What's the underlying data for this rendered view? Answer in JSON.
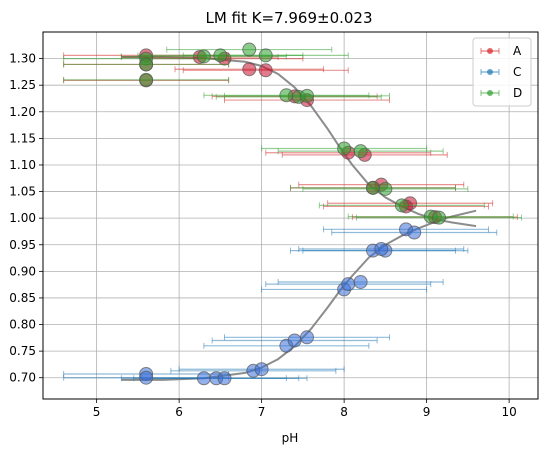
{
  "chart_data": {
    "type": "scatter",
    "title": "LM fit K=7.969±0.023",
    "xlabel": "pH",
    "ylabel": "",
    "xlim": [
      4.35,
      10.35
    ],
    "ylim": [
      0.66,
      1.35
    ],
    "xticks": [
      5,
      6,
      7,
      8,
      9,
      10
    ],
    "yticks": [
      0.7,
      0.75,
      0.8,
      0.85,
      0.9,
      0.95,
      1.0,
      1.05,
      1.1,
      1.15,
      1.2,
      1.25,
      1.3
    ],
    "xtick_labels": [
      "5",
      "6",
      "7",
      "8",
      "9",
      "10"
    ],
    "ytick_labels": [
      "0.70",
      "0.75",
      "0.80",
      "0.85",
      "0.90",
      "0.95",
      "1.00",
      "1.05",
      "1.10",
      "1.15",
      "1.20",
      "1.25",
      "1.30"
    ],
    "grid": true,
    "legend": "top-right",
    "series": [
      {
        "name": "A",
        "color": "#d62728",
        "fill": "#c8102e",
        "points": [
          {
            "x": 5.6,
            "y": 1.306,
            "xerr": 1.0
          },
          {
            "x": 5.6,
            "y": 1.289,
            "xerr": 1.0
          },
          {
            "x": 5.6,
            "y": 1.259,
            "xerr": 1.0
          },
          {
            "x": 6.25,
            "y": 1.303,
            "xerr": 0.95
          },
          {
            "x": 6.55,
            "y": 1.3,
            "xerr": 0.95
          },
          {
            "x": 6.85,
            "y": 1.28,
            "xerr": 0.9
          },
          {
            "x": 7.05,
            "y": 1.278,
            "xerr": 1.0
          },
          {
            "x": 7.4,
            "y": 1.229,
            "xerr": 1.0
          },
          {
            "x": 7.55,
            "y": 1.222,
            "xerr": 1.0
          },
          {
            "x": 8.05,
            "y": 1.123,
            "xerr": 1.0
          },
          {
            "x": 8.25,
            "y": 1.119,
            "xerr": 1.0
          },
          {
            "x": 8.45,
            "y": 1.063,
            "xerr": 1.0
          },
          {
            "x": 8.35,
            "y": 1.057,
            "xerr": 1.0
          },
          {
            "x": 8.8,
            "y": 1.028,
            "xerr": 1.0
          },
          {
            "x": 8.75,
            "y": 1.022,
            "xerr": 1.0
          },
          {
            "x": 9.1,
            "y": 1.002,
            "xerr": 1.0
          }
        ]
      },
      {
        "name": "C",
        "color": "#1f77b4",
        "fill": "#3a6fd8",
        "points": [
          {
            "x": 5.6,
            "y": 0.707,
            "xerr": 1.0
          },
          {
            "x": 5.6,
            "y": 0.7,
            "xerr": 1.0
          },
          {
            "x": 6.3,
            "y": 0.699,
            "xerr": 1.0
          },
          {
            "x": 6.45,
            "y": 0.699,
            "xerr": 1.0
          },
          {
            "x": 6.55,
            "y": 0.699,
            "xerr": 1.0
          },
          {
            "x": 6.9,
            "y": 0.713,
            "xerr": 1.0
          },
          {
            "x": 7.0,
            "y": 0.716,
            "xerr": 1.0
          },
          {
            "x": 7.3,
            "y": 0.76,
            "xerr": 1.0
          },
          {
            "x": 7.4,
            "y": 0.77,
            "xerr": 1.0
          },
          {
            "x": 7.55,
            "y": 0.776,
            "xerr": 1.0
          },
          {
            "x": 8.0,
            "y": 0.866,
            "xerr": 1.0
          },
          {
            "x": 8.05,
            "y": 0.876,
            "xerr": 1.0
          },
          {
            "x": 8.2,
            "y": 0.88,
            "xerr": 1.0
          },
          {
            "x": 8.35,
            "y": 0.939,
            "xerr": 1.0
          },
          {
            "x": 8.5,
            "y": 0.939,
            "xerr": 1.0
          },
          {
            "x": 8.45,
            "y": 0.942,
            "xerr": 1.0
          },
          {
            "x": 8.75,
            "y": 0.979,
            "xerr": 1.0
          },
          {
            "x": 8.85,
            "y": 0.973,
            "xerr": 1.0
          }
        ]
      },
      {
        "name": "D",
        "color": "#2ca02c",
        "fill": "#2ca02c",
        "points": [
          {
            "x": 5.6,
            "y": 1.3,
            "xerr": 1.0
          },
          {
            "x": 5.6,
            "y": 1.289,
            "xerr": 1.0
          },
          {
            "x": 5.6,
            "y": 1.26,
            "xerr": 1.0
          },
          {
            "x": 6.3,
            "y": 1.304,
            "xerr": 1.0
          },
          {
            "x": 6.5,
            "y": 1.306,
            "xerr": 1.0
          },
          {
            "x": 6.85,
            "y": 1.317,
            "xerr": 1.0
          },
          {
            "x": 7.05,
            "y": 1.306,
            "xerr": 1.0
          },
          {
            "x": 7.3,
            "y": 1.231,
            "xerr": 1.0
          },
          {
            "x": 7.45,
            "y": 1.228,
            "xerr": 1.0
          },
          {
            "x": 7.55,
            "y": 1.23,
            "xerr": 1.0
          },
          {
            "x": 8.0,
            "y": 1.131,
            "xerr": 1.0
          },
          {
            "x": 8.2,
            "y": 1.126,
            "xerr": 1.0
          },
          {
            "x": 8.35,
            "y": 1.057,
            "xerr": 1.0
          },
          {
            "x": 8.5,
            "y": 1.055,
            "xerr": 1.0
          },
          {
            "x": 8.7,
            "y": 1.024,
            "xerr": 1.0
          },
          {
            "x": 9.05,
            "y": 1.003,
            "xerr": 1.0
          },
          {
            "x": 9.15,
            "y": 1.001,
            "xerr": 1.0
          }
        ]
      }
    ],
    "fit_curves": [
      {
        "color": "#808080",
        "x": [
          5.3,
          5.8,
          6.3,
          6.8,
          7.0,
          7.2,
          7.4,
          7.6,
          7.8,
          7.969,
          8.1,
          8.3,
          8.5,
          8.7,
          8.9,
          9.1,
          9.3,
          9.6
        ],
        "y": [
          1.303,
          1.303,
          1.301,
          1.294,
          1.286,
          1.271,
          1.246,
          1.211,
          1.168,
          1.128,
          1.1,
          1.063,
          1.039,
          1.022,
          1.008,
          0.998,
          0.992,
          0.985
        ]
      },
      {
        "color": "#808080",
        "x": [
          5.3,
          5.8,
          6.3,
          6.8,
          7.0,
          7.2,
          7.4,
          7.6,
          7.8,
          7.969,
          8.1,
          8.3,
          8.5,
          8.7,
          8.9,
          9.1,
          9.3,
          9.6
        ],
        "y": [
          0.696,
          0.696,
          0.699,
          0.709,
          0.719,
          0.735,
          0.759,
          0.792,
          0.832,
          0.868,
          0.892,
          0.926,
          0.95,
          0.967,
          0.981,
          0.993,
          1.003,
          1.014
        ]
      }
    ]
  }
}
